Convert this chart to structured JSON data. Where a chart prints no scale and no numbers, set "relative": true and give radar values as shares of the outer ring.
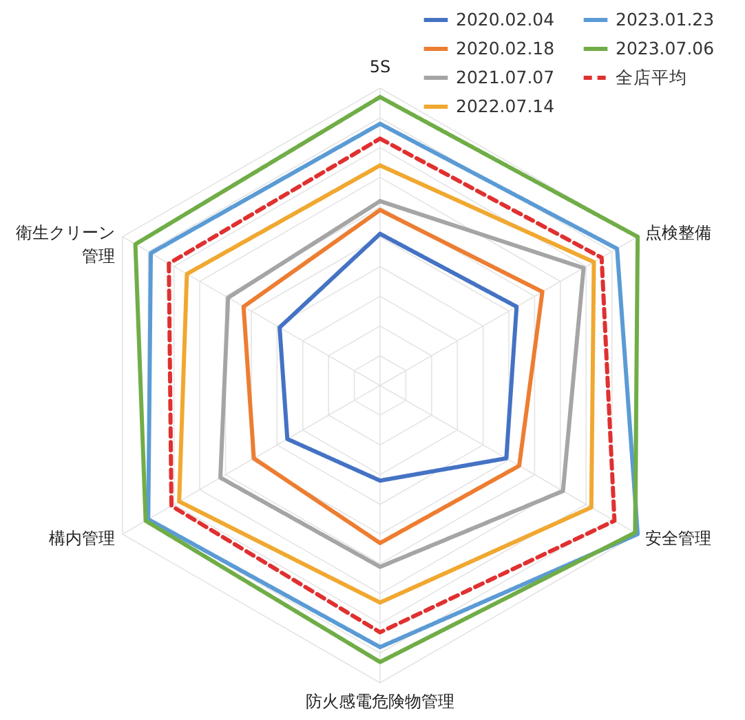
{
  "chart_data": {
    "type": "radar",
    "relative": true,
    "grid": true,
    "legend": "top right",
    "categories": [
      "5S",
      "点検整備",
      "安全管理",
      "防火感電危険物管理",
      "構内管理",
      "衛生クリーン管理"
    ],
    "series": [
      {
        "name": "2020.02.04",
        "color": "#4472c4",
        "values": [
          0.51,
          0.53,
          0.49,
          0.32,
          0.36,
          0.39
        ]
      },
      {
        "name": "2020.02.18",
        "color": "#ed7d31",
        "values": [
          0.59,
          0.63,
          0.54,
          0.53,
          0.49,
          0.53
        ]
      },
      {
        "name": "2021.07.07",
        "color": "#a5a5a5",
        "values": [
          0.62,
          0.79,
          0.71,
          0.61,
          0.62,
          0.59
        ]
      },
      {
        "name": "2022.07.14",
        "color": "#f0a830",
        "values": [
          0.74,
          0.83,
          0.82,
          0.73,
          0.78,
          0.75
        ]
      },
      {
        "name": "2023.01.23",
        "color": "#5b9bd5",
        "values": [
          0.88,
          0.92,
          1.0,
          0.88,
          0.9,
          0.89
        ]
      },
      {
        "name": "2023.07.06",
        "color": "#70ad47",
        "values": [
          0.97,
          1.0,
          0.99,
          0.93,
          0.91,
          0.95
        ]
      },
      {
        "name": "全店平均",
        "color": "#e03030",
        "line_style": "dashed",
        "values": [
          0.83,
          0.86,
          0.91,
          0.83,
          0.81,
          0.82
        ]
      }
    ]
  }
}
